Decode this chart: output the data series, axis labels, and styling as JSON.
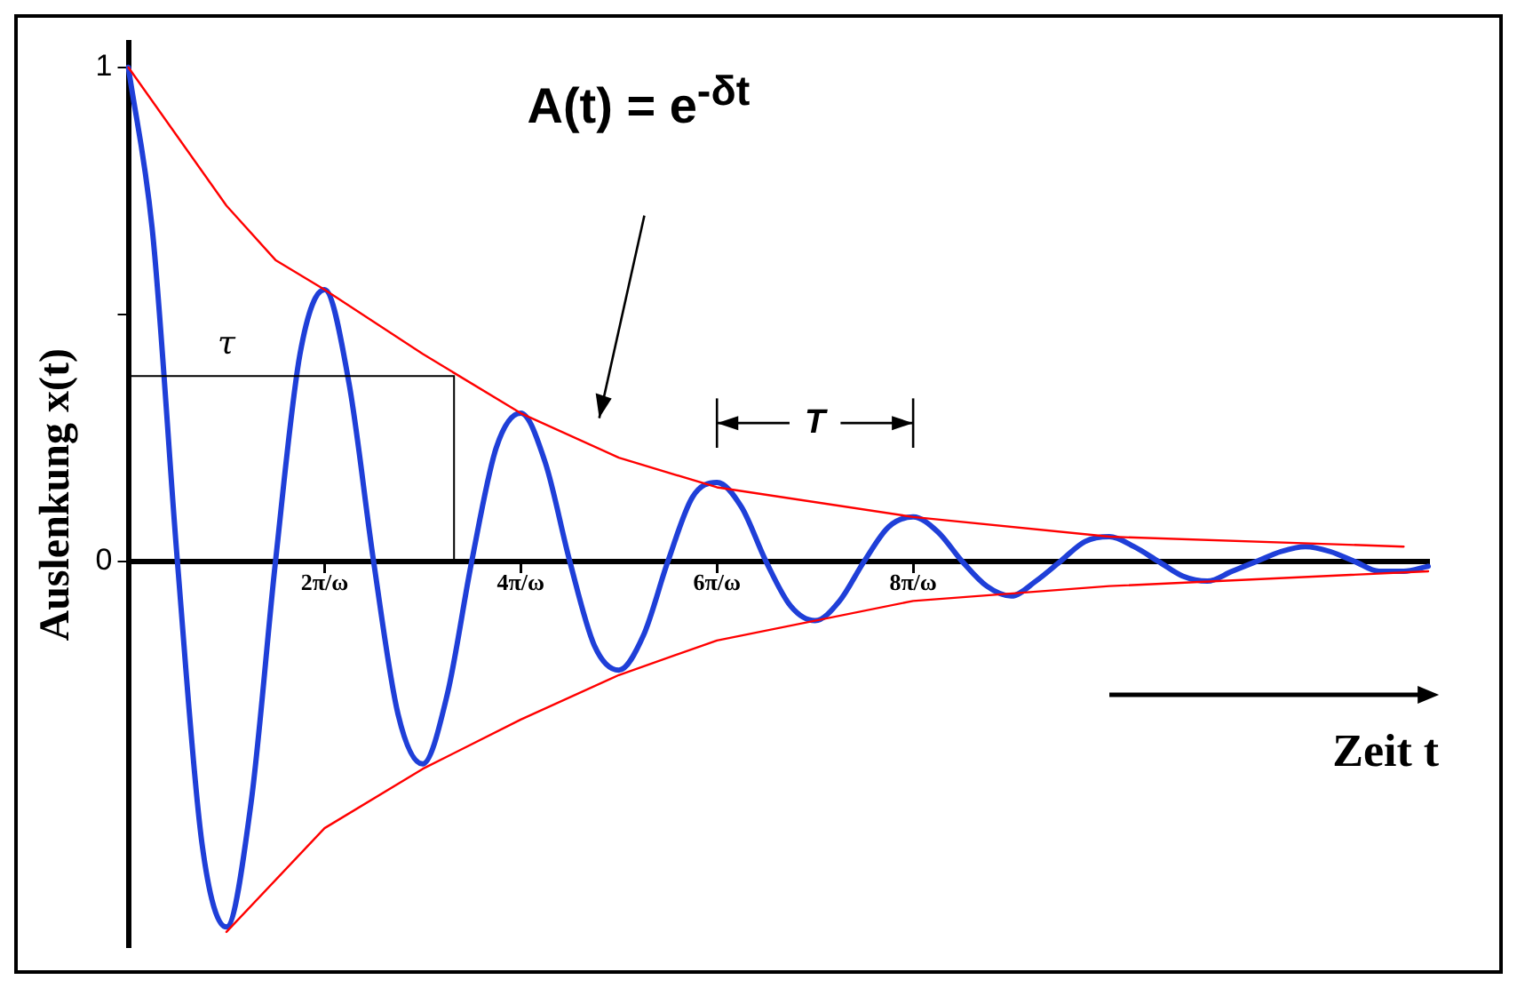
{
  "chart_data": {
    "type": "line",
    "xlabel": "Zeit t",
    "ylabel": "Auslenkung x(t)",
    "annotations": [
      "A(t) = e$^{-δt}$",
      "τ",
      "T"
    ],
    "categories": [
      null,
      null,
      null,
      null,
      null,
      null,
      null,
      null,
      "2π/ω",
      null,
      null,
      null,
      null,
      null,
      null,
      null,
      "4π/ω",
      null,
      null,
      null,
      null,
      null,
      null,
      null,
      "6π/ω",
      null,
      null,
      null,
      null,
      null,
      null,
      null,
      "8π/ω",
      null,
      null,
      null,
      null,
      null,
      null,
      null,
      null,
      null,
      null,
      null,
      null,
      null,
      null,
      null,
      null,
      null,
      null,
      null,
      null,
      null
    ],
    "ylim": [
      -0.78,
      1.05
    ],
    "yticks": [
      0,
      {
        "value": 0.5,
        "label": null
      },
      1
    ],
    "grid": false,
    "legend": false,
    "marker": "none",
    "line_style": "solid",
    "series": [
      {
        "color": "#ff0000",
        "values": [
          1,
          null,
          null,
          null,
          0.72,
          null,
          0.61,
          null,
          0.55,
          null,
          null,
          null,
          0.42,
          null,
          null,
          null,
          0.3,
          null,
          null,
          null,
          0.21,
          null,
          null,
          null,
          0.15,
          null,
          null,
          null,
          null,
          null,
          null,
          null,
          0.09,
          null,
          null,
          null,
          null,
          null,
          null,
          null,
          0.05,
          null,
          null,
          null,
          null,
          null,
          null,
          null,
          null,
          null,
          null,
          null,
          0.03,
          null
        ]
      },
      {
        "color": "#ff0000",
        "values": [
          null,
          null,
          null,
          null,
          -0.75,
          null,
          null,
          null,
          -0.54,
          null,
          null,
          null,
          -0.42,
          null,
          null,
          null,
          -0.32,
          null,
          null,
          null,
          -0.23,
          null,
          null,
          null,
          -0.16,
          null,
          null,
          null,
          null,
          null,
          null,
          null,
          -0.08,
          null,
          null,
          null,
          null,
          null,
          null,
          null,
          -0.05,
          null,
          null,
          null,
          null,
          null,
          null,
          null,
          null,
          null,
          null,
          null,
          null,
          -0.02
        ]
      },
      {
        "color": "#1f3fd8",
        "values": [
          1,
          0.66,
          0,
          -0.57,
          -0.74,
          -0.49,
          0,
          0.42,
          0.55,
          0.36,
          0,
          -0.31,
          -0.41,
          -0.27,
          0,
          0.23,
          0.3,
          0.2,
          0,
          -0.17,
          -0.22,
          -0.15,
          0,
          0.13,
          0.16,
          0.11,
          0,
          -0.09,
          -0.12,
          -0.08,
          0,
          0.07,
          0.09,
          0.06,
          0,
          -0.05,
          -0.07,
          -0.04,
          0,
          0.04,
          0.05,
          0.03,
          0,
          -0.03,
          -0.04,
          -0.02,
          0,
          0.02,
          0.03,
          0.02,
          0,
          -0.02,
          -0.02,
          -0.01
        ]
      }
    ]
  }
}
